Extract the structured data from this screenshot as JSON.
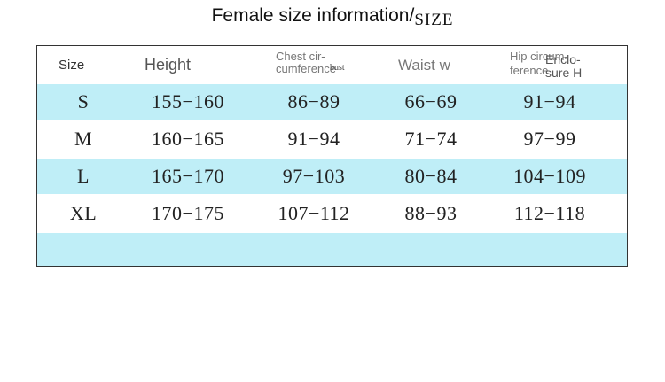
{
  "title": {
    "main": "Female size information/",
    "suffix": "SIZE"
  },
  "table": {
    "headers": {
      "size": "Size",
      "height": "Height",
      "chest": "Chest cir-\ncumference",
      "chest_overlay": "bust",
      "waist": "Waist w",
      "hip": "Hip circum-\nference",
      "hip_overlay": "Enclo-\nsure H"
    },
    "rows": [
      {
        "size": "S",
        "height": "155−160",
        "chest": "86−89",
        "waist": "66−69",
        "hip": "91−94"
      },
      {
        "size": "M",
        "height": "160−165",
        "chest": "91−94",
        "waist": "71−74",
        "hip": "97−99"
      },
      {
        "size": "L",
        "height": "165−170",
        "chest": "97−103",
        "waist": "80−84",
        "hip": "104−109"
      },
      {
        "size": "XL",
        "height": "170−175",
        "chest": "107−112",
        "waist": "88−93",
        "hip": "112−118"
      }
    ],
    "band_color": "#bfeef7",
    "border_color": "#333333"
  }
}
